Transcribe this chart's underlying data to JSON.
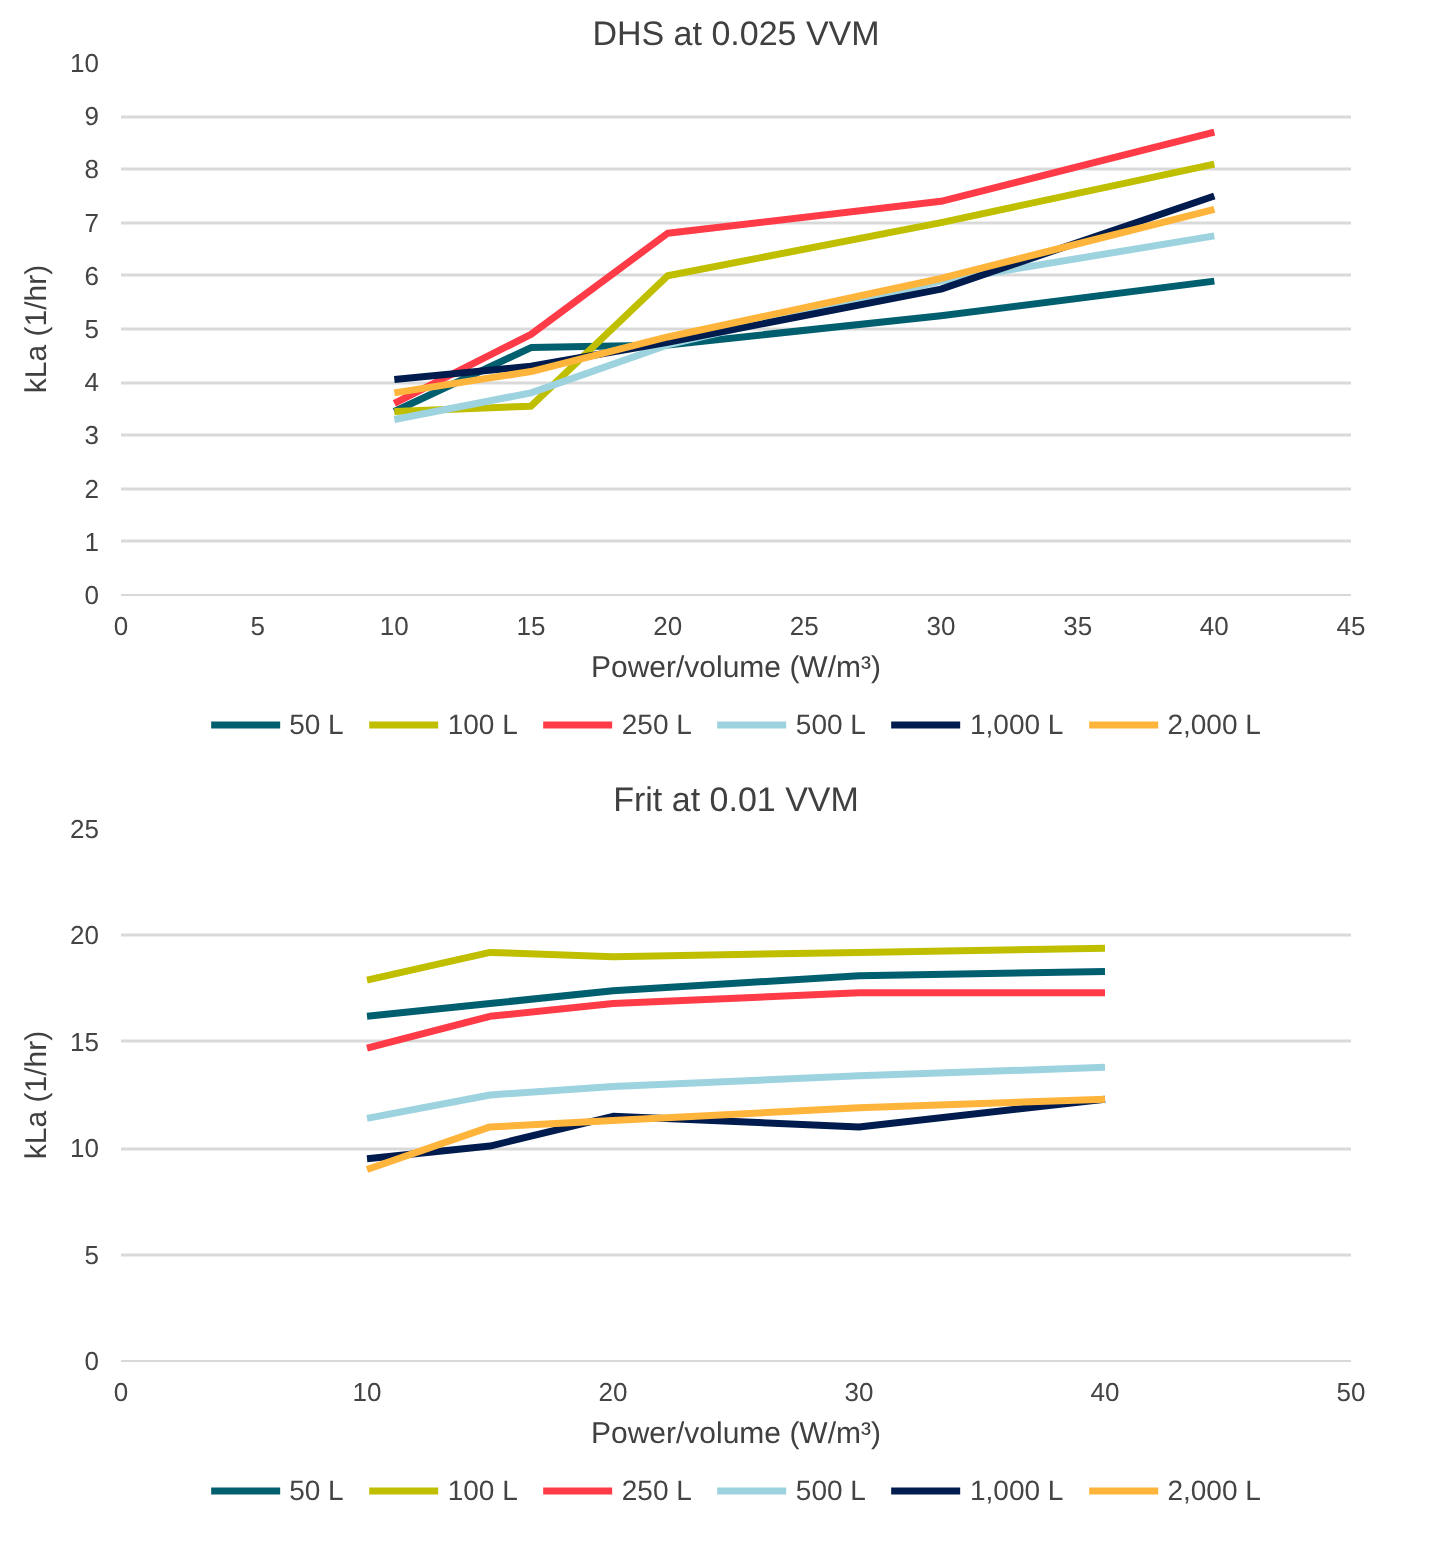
{
  "chart_data": [
    {
      "type": "line",
      "title": "DHS at 0.025 VVM",
      "xlabel": "Power/volume (W/m³)",
      "ylabel": "kLa (1/hr)",
      "x": [
        10,
        15,
        20,
        30,
        40
      ],
      "xlim": [
        0,
        45
      ],
      "xticks": [
        0,
        5,
        10,
        15,
        20,
        25,
        30,
        35,
        40,
        45
      ],
      "ylim": [
        0,
        10
      ],
      "yticks": [
        0,
        1,
        2,
        3,
        4,
        5,
        6,
        7,
        8,
        9,
        10
      ],
      "grid": "y",
      "legend": "bottom",
      "series": [
        {
          "name": "50 L",
          "color": "#005f6e",
          "values": [
            3.45,
            4.65,
            4.7,
            5.25,
            5.9
          ]
        },
        {
          "name": "100 L",
          "color": "#bfbf00",
          "values": [
            3.45,
            3.55,
            6.0,
            7.0,
            8.1
          ]
        },
        {
          "name": "250 L",
          "color": "#ff3b47",
          "values": [
            3.6,
            4.9,
            6.8,
            7.4,
            8.7
          ]
        },
        {
          "name": "500 L",
          "color": "#9dd3df",
          "values": [
            3.3,
            3.8,
            4.7,
            5.9,
            6.75
          ]
        },
        {
          "name": "1,000 L",
          "color": "#001b4d",
          "values": [
            4.05,
            4.3,
            4.75,
            5.75,
            7.5
          ]
        },
        {
          "name": "2,000 L",
          "color": "#ffb43c",
          "values": [
            3.8,
            4.2,
            4.85,
            5.95,
            7.25
          ]
        }
      ]
    },
    {
      "type": "line",
      "title": "Frit at 0.01 VVM",
      "xlabel": "Power/volume (W/m³)",
      "ylabel": "kLa (1/hr)",
      "x": [
        10,
        15,
        20,
        30,
        40
      ],
      "xlim": [
        0,
        50
      ],
      "xticks": [
        0,
        10,
        20,
        30,
        40,
        50
      ],
      "ylim": [
        0,
        25
      ],
      "yticks": [
        0,
        5,
        10,
        15,
        20,
        25
      ],
      "grid": "y",
      "legend": "bottom",
      "series": [
        {
          "name": "50 L",
          "color": "#005f6e",
          "values": [
            16.2,
            16.8,
            17.4,
            18.1,
            18.3
          ]
        },
        {
          "name": "100 L",
          "color": "#bfbf00",
          "values": [
            17.9,
            19.2,
            19.0,
            19.2,
            19.4
          ]
        },
        {
          "name": "250 L",
          "color": "#ff3b47",
          "values": [
            14.7,
            16.2,
            16.8,
            17.3,
            17.3
          ]
        },
        {
          "name": "500 L",
          "color": "#9dd3df",
          "values": [
            11.4,
            12.5,
            12.9,
            13.4,
            13.8
          ]
        },
        {
          "name": "1,000 L",
          "color": "#001b4d",
          "values": [
            9.5,
            10.1,
            11.5,
            11.0,
            12.3
          ]
        },
        {
          "name": "2,000 L",
          "color": "#ffb43c",
          "values": [
            9.0,
            11.0,
            11.3,
            11.9,
            12.3
          ]
        }
      ]
    }
  ]
}
